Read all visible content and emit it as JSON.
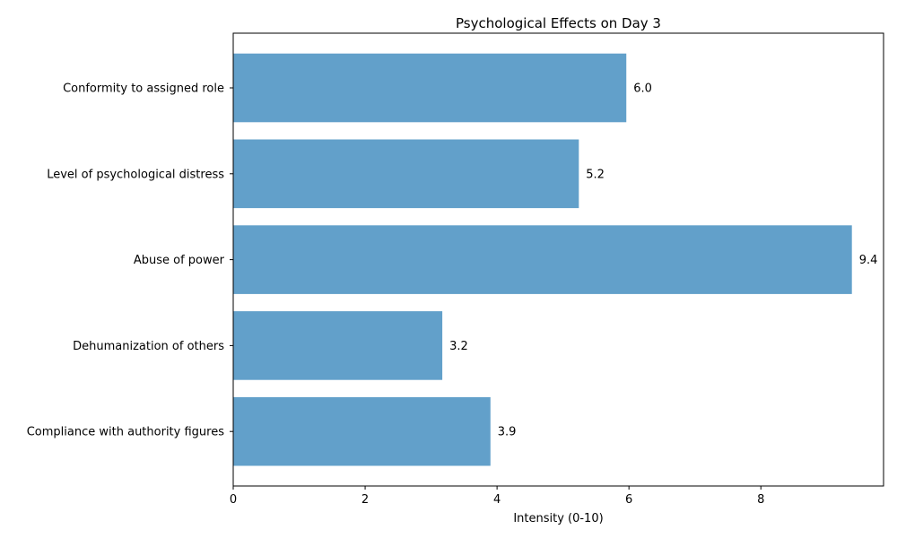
{
  "chart_data": {
    "type": "bar",
    "orientation": "horizontal",
    "title": "Psychological Effects on Day 3",
    "xlabel": "Intensity (0-10)",
    "ylabel": "",
    "categories": [
      "Conformity to assigned role",
      "Level of psychological distress",
      "Abuse of power",
      "Dehumanization of others",
      "Compliance with authority figures"
    ],
    "values": [
      5.96,
      5.24,
      9.38,
      3.17,
      3.9
    ],
    "value_labels": [
      "6.0",
      "5.2",
      "9.4",
      "3.2",
      "3.9"
    ],
    "xlim": [
      0,
      9.86
    ],
    "xticks": [
      0,
      2,
      4,
      6,
      8
    ],
    "xtick_labels": [
      "0",
      "2",
      "4",
      "6",
      "8"
    ],
    "grid": false,
    "legend": "none",
    "bar_color": "#1f77b4",
    "bar_opacity": 0.7
  }
}
